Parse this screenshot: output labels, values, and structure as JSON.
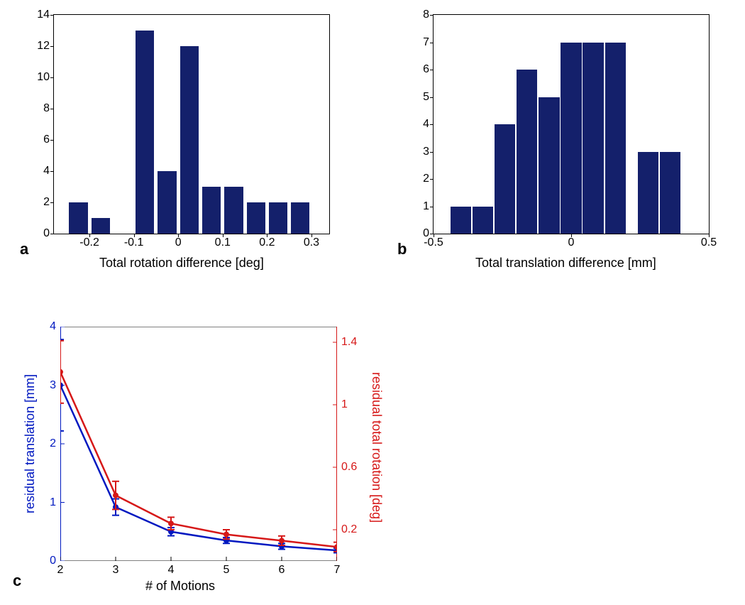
{
  "background_color": "#ffffff",
  "axis_color": "#000000",
  "tick_font_size": 16,
  "label_font_size": 18,
  "panel_letter_font_size": 22,
  "panelA": {
    "letter": "a",
    "type": "histogram",
    "bar_color": "#14206b",
    "xlim": [
      -0.28,
      0.34
    ],
    "ylim": [
      0,
      14
    ],
    "yticks": [
      0,
      2,
      4,
      6,
      8,
      10,
      12,
      14
    ],
    "xticks": [
      -0.2,
      -0.1,
      0,
      0.1,
      0.2,
      0.3
    ],
    "bar_width": 0.042,
    "bars": [
      {
        "x": -0.225,
        "h": 2
      },
      {
        "x": -0.175,
        "h": 1
      },
      {
        "x": -0.075,
        "h": 13
      },
      {
        "x": -0.025,
        "h": 4
      },
      {
        "x": 0.025,
        "h": 12
      },
      {
        "x": 0.075,
        "h": 3
      },
      {
        "x": 0.125,
        "h": 3
      },
      {
        "x": 0.175,
        "h": 2
      },
      {
        "x": 0.225,
        "h": 2
      },
      {
        "x": 0.275,
        "h": 2
      }
    ],
    "xlabel": "Total rotation difference [deg]"
  },
  "panelB": {
    "letter": "b",
    "type": "histogram",
    "bar_color": "#14206b",
    "xlim": [
      -0.5,
      0.5
    ],
    "ylim": [
      0,
      8
    ],
    "yticks": [
      0,
      1,
      2,
      3,
      4,
      5,
      6,
      7,
      8
    ],
    "xticks": [
      -0.5,
      0,
      0.5
    ],
    "bar_width": 0.075,
    "bars": [
      {
        "x": -0.4,
        "h": 1
      },
      {
        "x": -0.32,
        "h": 1
      },
      {
        "x": -0.24,
        "h": 4
      },
      {
        "x": -0.16,
        "h": 6
      },
      {
        "x": -0.08,
        "h": 5
      },
      {
        "x": 0.0,
        "h": 7
      },
      {
        "x": 0.08,
        "h": 7
      },
      {
        "x": 0.16,
        "h": 7
      },
      {
        "x": 0.28,
        "h": 3
      },
      {
        "x": 0.36,
        "h": 3
      }
    ],
    "xlabel": "Total translation difference [mm]"
  },
  "panelC": {
    "letter": "c",
    "type": "errorbar_dual_axis",
    "xlim": [
      2,
      7
    ],
    "xticks": [
      2,
      3,
      4,
      5,
      6,
      7
    ],
    "left": {
      "color": "#0018c0",
      "ylim": [
        0,
        4
      ],
      "yticks": [
        0,
        1,
        2,
        3,
        4
      ],
      "label": "residual translation [mm]",
      "series": [
        {
          "x": 2,
          "y": 3.0,
          "err": 0.78
        },
        {
          "x": 3,
          "y": 0.92,
          "err": 0.14
        },
        {
          "x": 4,
          "y": 0.5,
          "err": 0.07
        },
        {
          "x": 5,
          "y": 0.35,
          "err": 0.05
        },
        {
          "x": 6,
          "y": 0.25,
          "err": 0.05
        },
        {
          "x": 7,
          "y": 0.18,
          "err": 0.04
        }
      ]
    },
    "right": {
      "color": "#d61818",
      "ylim": [
        0,
        1.5
      ],
      "yticks": [
        0.2,
        0.6,
        1.0,
        1.4
      ],
      "label": "residual total rotation [deg]",
      "series": [
        {
          "x": 2,
          "y": 1.21,
          "err": 0.2
        },
        {
          "x": 3,
          "y": 0.42,
          "err": 0.09
        },
        {
          "x": 4,
          "y": 0.24,
          "err": 0.04
        },
        {
          "x": 5,
          "y": 0.17,
          "err": 0.03
        },
        {
          "x": 6,
          "y": 0.13,
          "err": 0.03
        },
        {
          "x": 7,
          "y": 0.09,
          "err": 0.03
        }
      ]
    },
    "xlabel": "# of Motions"
  }
}
